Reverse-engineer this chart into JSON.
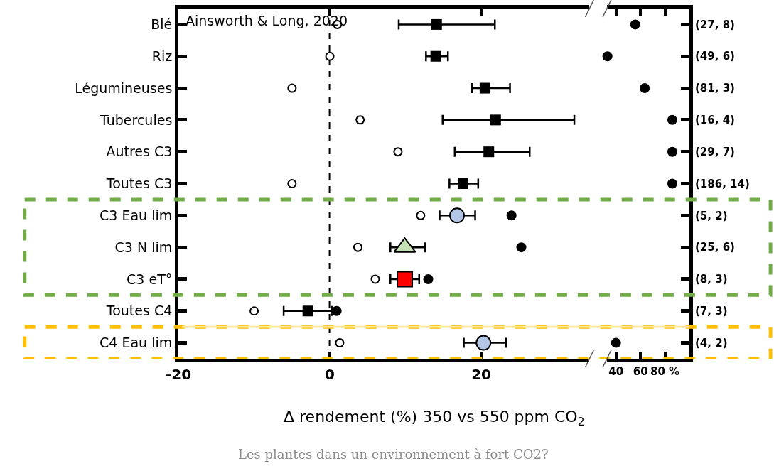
{
  "chart_data": [
    {
      "type": "scatter",
      "orientation": "horizontal",
      "categories": [
        "Blé",
        "Riz",
        "Légumineuses",
        "Tubercules",
        "Autres C3",
        "Toutes C3",
        "C3 Eau lim",
        "C3 N lim",
        "C3 eT°",
        "Toutes C4",
        "C4 Eau lim"
      ],
      "xlim": [
        -20,
        34.3
      ],
      "xticks": [
        -20,
        0,
        20
      ],
      "xlabel": "Δ rendement (%) 350 vs 550 ppm CO$_{2}$",
      "annotations": [
        "Ainsworth & Long, 2020",
        "Les plantes dans un environnement à fort CO2?"
      ],
      "ref_lines": [
        {
          "axis": "x",
          "value": 0,
          "color": "#000000",
          "line_style": "dashed"
        }
      ],
      "series": [
        {
          "color": "#ffffff",
          "marker": "circle",
          "values": [
            1.0,
            0,
            -5,
            4,
            9,
            -5,
            12,
            3.7,
            6,
            -10,
            1.3
          ]
        },
        {
          "color": "#000000",
          "marker": "square",
          "values": [
            14.1,
            14,
            20.5,
            21.9,
            21,
            17.6,
            null,
            null,
            null,
            -2.9,
            null
          ],
          "errors": [
            [
              9.1,
              21.8
            ],
            [
              12.7,
              15.6
            ],
            [
              18.8,
              23.8
            ],
            [
              14.9,
              32.3
            ],
            [
              16.5,
              26.4
            ],
            [
              15.8,
              19.6
            ],
            null,
            null,
            null,
            [
              -6.1,
              0.3
            ],
            null
          ]
        },
        {
          "color": "#b4c7e7",
          "marker": "circle",
          "values": [
            null,
            null,
            null,
            null,
            null,
            null,
            16.8,
            null,
            null,
            null,
            20.3
          ],
          "errors": [
            null,
            null,
            null,
            null,
            null,
            null,
            [
              14.5,
              19.2
            ],
            null,
            null,
            null,
            [
              17.7,
              23.3
            ]
          ]
        },
        {
          "color": "#c5e0b4",
          "marker": "triangle",
          "values": [
            null,
            null,
            null,
            null,
            null,
            null,
            null,
            9.9,
            null,
            null,
            null
          ],
          "errors": [
            null,
            null,
            null,
            null,
            null,
            null,
            null,
            [
              8,
              12.6
            ],
            null,
            null,
            null
          ]
        },
        {
          "color": "#ff0000",
          "marker": "square",
          "values": [
            null,
            null,
            null,
            null,
            null,
            null,
            null,
            null,
            9.9,
            null,
            null
          ],
          "errors": [
            null,
            null,
            null,
            null,
            null,
            null,
            null,
            null,
            [
              8,
              11.8
            ],
            null,
            null
          ]
        },
        {
          "color": "#000000",
          "marker": "circle",
          "values": [
            null,
            null,
            null,
            null,
            null,
            null,
            24,
            25.3,
            13,
            0.9,
            null
          ]
        }
      ]
    },
    {
      "type": "scatter",
      "orientation": "horizontal",
      "categories": [
        "(27, 8)",
        "(49, 6)",
        "(81, 3)",
        "(16, 4)",
        "(29, 7)",
        "(186, 14)",
        "(5, 2)",
        "(25, 6)",
        "(8, 3)",
        "(7, 3)",
        "(4, 2)"
      ],
      "xlim": [
        32.6,
        100
      ],
      "xticks": [
        40,
        60,
        {
          "value": 80,
          "label": "80 %"
        }
      ],
      "series": [
        {
          "color": "#000000",
          "marker": "circle",
          "values": [
            55.7,
            33,
            63.5,
            86,
            86,
            86,
            null,
            null,
            null,
            null,
            40
          ]
        }
      ]
    }
  ]
}
